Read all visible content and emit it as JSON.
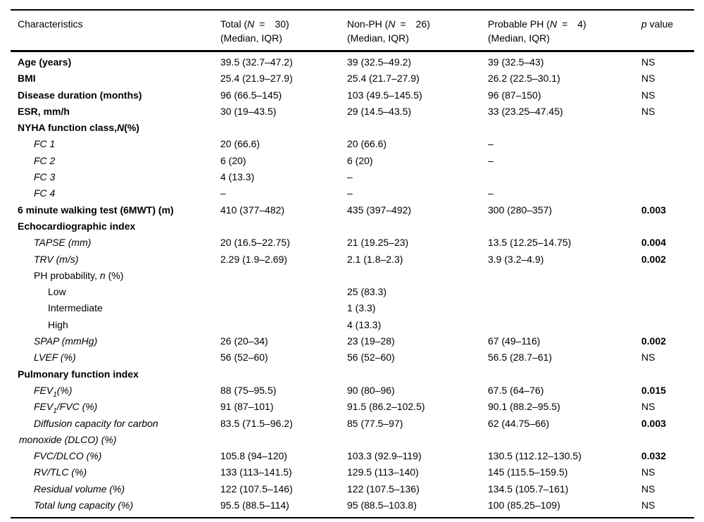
{
  "colors": {
    "text": "#000000",
    "background": "#ffffff",
    "rule": "#000000"
  },
  "table": {
    "headers": [
      {
        "text": "Characteristics",
        "sub": ""
      },
      {
        "text": "Total (*N* =  30)",
        "sub": "(Median, IQR)"
      },
      {
        "text": "Non-PH (*N* =  26)",
        "sub": "(Median, IQR)"
      },
      {
        "text": "Probable PH (*N* =  4)",
        "sub": "(Median, IQR)"
      },
      {
        "text": "*p* value",
        "sub": ""
      }
    ],
    "rows": [
      {
        "label": "Age (years)",
        "indent": 0,
        "bold": true,
        "italic": false,
        "hang": false,
        "values": [
          "39.5 (32.7–47.2)",
          "39 (32.5–49.2)",
          "39 (32.5–43)"
        ],
        "p": "NS",
        "p_bold": false
      },
      {
        "label": "BMI",
        "indent": 0,
        "bold": true,
        "italic": false,
        "hang": false,
        "values": [
          "25.4 (21.9–27.9)",
          "25.4 (21.7–27.9)",
          "26.2 (22.5–30.1)"
        ],
        "p": "NS",
        "p_bold": false
      },
      {
        "label": "Disease duration (months)",
        "indent": 0,
        "bold": true,
        "italic": false,
        "hang": false,
        "values": [
          "96 (66.5–145)",
          "103 (49.5–145.5)",
          "96 (87–150)"
        ],
        "p": "NS",
        "p_bold": false
      },
      {
        "label": "ESR, mm/h",
        "indent": 0,
        "bold": true,
        "italic": false,
        "hang": false,
        "values": [
          "30 (19–43.5)",
          "29 (14.5–43.5)",
          "33 (23.25–47.45)"
        ],
        "p": "NS",
        "p_bold": false
      },
      {
        "label": "NYHA function class,*N*(%)",
        "indent": 0,
        "bold": true,
        "italic": false,
        "hang": false,
        "values": [
          "",
          "",
          ""
        ],
        "p": "",
        "p_bold": false
      },
      {
        "label": "FC 1",
        "indent": 1,
        "bold": false,
        "italic": true,
        "hang": false,
        "values": [
          "20 (66.6)",
          "20 (66.6)",
          "–"
        ],
        "p": "",
        "p_bold": false
      },
      {
        "label": "FC 2",
        "indent": 1,
        "bold": false,
        "italic": true,
        "hang": false,
        "values": [
          "6 (20)",
          "6 (20)",
          "–"
        ],
        "p": "",
        "p_bold": false
      },
      {
        "label": "FC 3",
        "indent": 1,
        "bold": false,
        "italic": true,
        "hang": false,
        "values": [
          "4 (13.3)",
          "–",
          ""
        ],
        "p": "",
        "p_bold": false
      },
      {
        "label": "FC 4",
        "indent": 1,
        "bold": false,
        "italic": true,
        "hang": false,
        "values": [
          "–",
          "–",
          "–"
        ],
        "p": "",
        "p_bold": false
      },
      {
        "label": "6 minute walking test (6MWT) (m)",
        "indent": 0,
        "bold": true,
        "italic": false,
        "hang": false,
        "values": [
          "410 (377–482)",
          "435 (397–492)",
          "300 (280–357)"
        ],
        "p": "0.003",
        "p_bold": true
      },
      {
        "label": "Echocardiographic index",
        "indent": 0,
        "bold": true,
        "italic": false,
        "hang": false,
        "values": [
          "",
          "",
          ""
        ],
        "p": "",
        "p_bold": false
      },
      {
        "label": "TAPSE (mm)",
        "indent": 1,
        "bold": false,
        "italic": true,
        "hang": false,
        "values": [
          "20 (16.5–22.75)",
          "21 (19.25–23)",
          "13.5 (12.25–14.75)"
        ],
        "p": "0.004",
        "p_bold": true
      },
      {
        "label": "TRV (m/s)",
        "indent": 1,
        "bold": false,
        "italic": true,
        "hang": false,
        "values": [
          "2.29 (1.9–2.69)",
          "2.1 (1.8–2.3)",
          "3.9 (3.2–4.9)"
        ],
        "p": "0.002",
        "p_bold": true
      },
      {
        "label": "PH probability, *n* (%)",
        "indent": 1,
        "bold": false,
        "italic": false,
        "hang": false,
        "values": [
          "",
          "",
          ""
        ],
        "p": "",
        "p_bold": false
      },
      {
        "label": "Low",
        "indent": 2,
        "bold": false,
        "italic": false,
        "hang": false,
        "values": [
          "",
          "25 (83.3)",
          ""
        ],
        "p": "",
        "p_bold": false
      },
      {
        "label": "Intermediate",
        "indent": 2,
        "bold": false,
        "italic": false,
        "hang": false,
        "values": [
          "",
          "1 (3.3)",
          ""
        ],
        "p": "",
        "p_bold": false
      },
      {
        "label": "High",
        "indent": 2,
        "bold": false,
        "italic": false,
        "hang": false,
        "values": [
          "",
          "4 (13.3)",
          ""
        ],
        "p": "",
        "p_bold": false
      },
      {
        "label": "SPAP (mmHg)",
        "indent": 1,
        "bold": false,
        "italic": true,
        "hang": false,
        "values": [
          "26 (20–34)",
          "23 (19–28)",
          "67 (49–116)"
        ],
        "p": "0.002",
        "p_bold": true
      },
      {
        "label": "LVEF (%)",
        "indent": 1,
        "bold": false,
        "italic": true,
        "hang": false,
        "values": [
          "56 (52–60)",
          "56 (52–60)",
          "56.5 (28.7–61)"
        ],
        "p": "NS",
        "p_bold": false
      },
      {
        "label": "Pulmonary function index",
        "indent": 0,
        "bold": true,
        "italic": false,
        "hang": false,
        "values": [
          "",
          "",
          ""
        ],
        "p": "",
        "p_bold": false
      },
      {
        "label": "FEV~1~(%)",
        "indent": 1,
        "bold": false,
        "italic": true,
        "hang": false,
        "values": [
          "88 (75–95.5)",
          "90 (80–96)",
          "67.5 (64–76)"
        ],
        "p": "0.015",
        "p_bold": true
      },
      {
        "label": "FEV~1~/FVC (%)",
        "indent": 1,
        "bold": false,
        "italic": true,
        "hang": false,
        "values": [
          "91 (87–101)",
          "91.5 (86.2–102.5)",
          "90.1 (88.2–95.5)"
        ],
        "p": "NS",
        "p_bold": false
      },
      {
        "label": "Diffusion capacity for carbon\nmonoxide (DLCO) (%)",
        "indent": 1,
        "bold": false,
        "italic": true,
        "hang": true,
        "values": [
          "83.5 (71.5–96.2)",
          "85 (77.5–97)",
          "62 (44.75–66)"
        ],
        "p": "0.003",
        "p_bold": true
      },
      {
        "label": "FVC/DLCO (%)",
        "indent": 1,
        "bold": false,
        "italic": true,
        "hang": false,
        "values": [
          "105.8 (94–120)",
          "103.3 (92.9–119)",
          "130.5 (112.12–130.5)"
        ],
        "p": "0.032",
        "p_bold": true
      },
      {
        "label": "RV/TLC (%)",
        "indent": 1,
        "bold": false,
        "italic": true,
        "hang": false,
        "values": [
          "133 (113–141.5)",
          "129.5 (113–140)",
          "145 (115.5–159.5)"
        ],
        "p": "NS",
        "p_bold": false
      },
      {
        "label": "Residual volume (%)",
        "indent": 1,
        "bold": false,
        "italic": true,
        "hang": false,
        "values": [
          "122 (107.5–146)",
          "122 (107.5–136)",
          "134.5 (105.7–161)"
        ],
        "p": "NS",
        "p_bold": false
      },
      {
        "label": "Total lung capacity (%)",
        "indent": 1,
        "bold": false,
        "italic": true,
        "hang": false,
        "values": [
          "95.5 (88.5–114)",
          "95 (88.5–103.8)",
          "100 (85.25–109)"
        ],
        "p": "NS",
        "p_bold": false
      }
    ]
  }
}
